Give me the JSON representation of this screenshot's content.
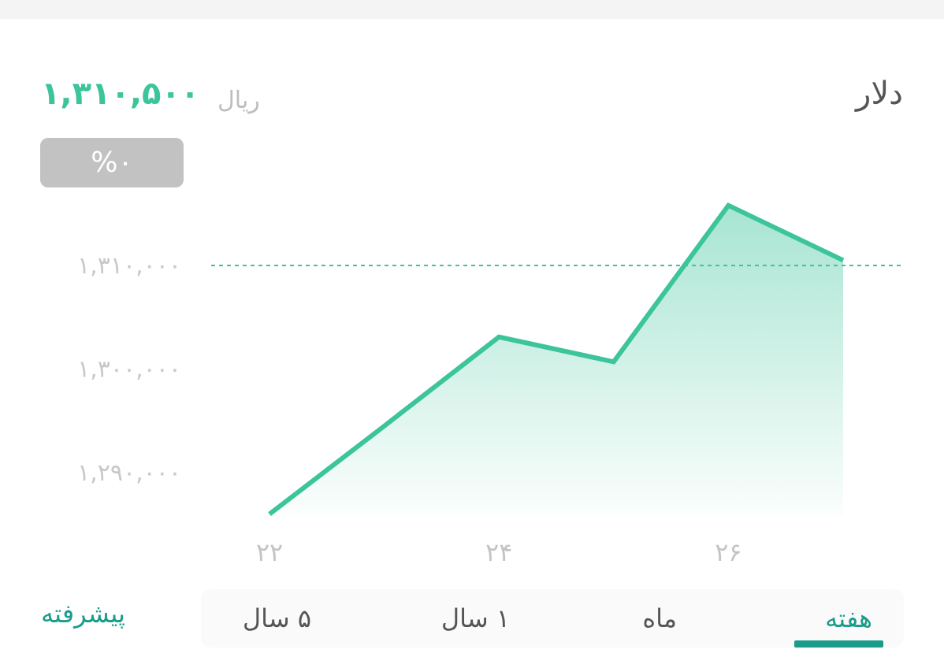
{
  "header": {
    "title": "دلار",
    "price": "۱,۳۱۰,۵۰۰",
    "unit": "ریال",
    "change_badge": "%۰"
  },
  "colors": {
    "accent": "#3cc49a",
    "tab_active": "#1a9c8a",
    "badge": "#c2c2c2"
  },
  "chart_data": {
    "type": "area",
    "x": [
      "22",
      "23",
      "24",
      "25",
      "26",
      "27"
    ],
    "xtick_labels": [
      {
        "x": "22",
        "label": "۲۲"
      },
      {
        "x": "24",
        "label": "۲۴"
      },
      {
        "x": "26",
        "label": "۲۶"
      }
    ],
    "values": [
      1286000,
      1294500,
      1303100,
      1300700,
      1315800,
      1310500
    ],
    "yticks": [
      {
        "value": 1310000,
        "label": "۱,۳۱۰,۰۰۰"
      },
      {
        "value": 1300000,
        "label": "۱,۳۰۰,۰۰۰"
      },
      {
        "value": 1290000,
        "label": "۱,۲۹۰,۰۰۰"
      }
    ],
    "reference_line": 1310000,
    "grid": false
  },
  "tabs": [
    {
      "label": "هفته",
      "active": true
    },
    {
      "label": "ماه",
      "active": false
    },
    {
      "label": "۱ سال",
      "active": false
    },
    {
      "label": "۵ سال",
      "active": false
    }
  ],
  "advanced_label": "پیشرفته"
}
